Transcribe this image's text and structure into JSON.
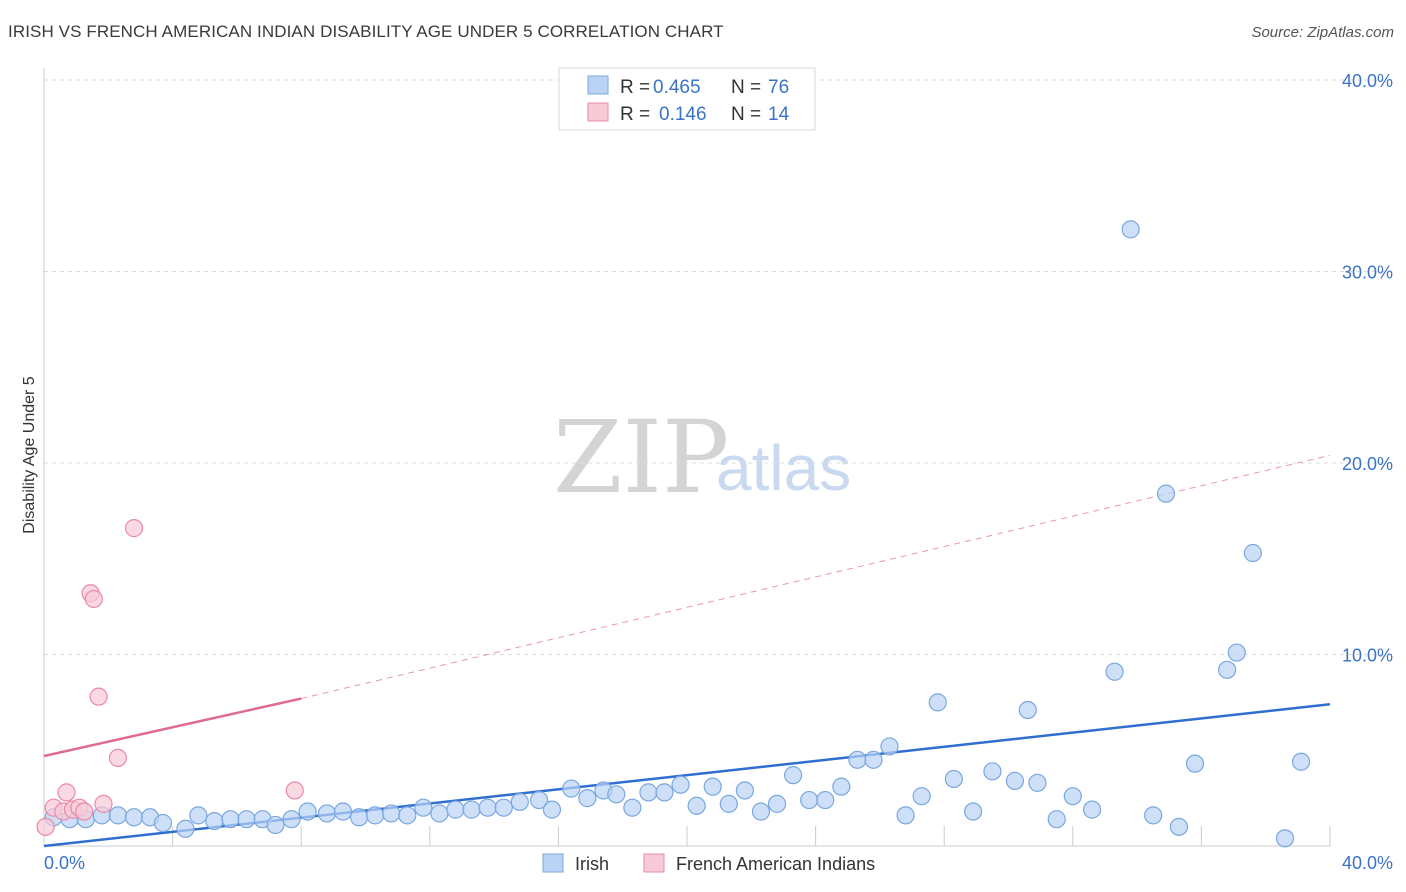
{
  "title": "IRISH VS FRENCH AMERICAN INDIAN DISABILITY AGE UNDER 5 CORRELATION CHART",
  "source": "Source: ZipAtlas.com",
  "watermark": {
    "zip": "ZIP",
    "atlas": "atlas"
  },
  "colors": {
    "irish_fill": "#b9d3f5",
    "irish_stroke": "#7aa7e0",
    "irish_line": "#2f6fd0",
    "french_fill": "#f8c9d7",
    "french_stroke": "#e98aa7",
    "french_line": "#e06b92",
    "axis_text": "#3b73c7",
    "grid": "#dddddd"
  },
  "legend": {
    "rows": [
      {
        "r_label": "R = ",
        "r_value": "0.465",
        "n_label": "N = ",
        "n_value": "76"
      },
      {
        "r_label": "R = ",
        "r_value": "0.146",
        "n_label": "N = ",
        "n_value": "14"
      }
    ]
  },
  "chart_data": {
    "type": "scatter",
    "title": "IRISH VS FRENCH AMERICAN INDIAN DISABILITY AGE UNDER 5 CORRELATION CHART",
    "xlabel": "",
    "ylabel": "Disability Age Under 5",
    "xlim": [
      0,
      40
    ],
    "ylim": [
      0,
      40
    ],
    "x_tick_labels": {
      "min": "0.0%",
      "max": "40.0%"
    },
    "y_ticks": [
      {
        "value": 10,
        "label": "10.0%"
      },
      {
        "value": 20,
        "label": "20.0%"
      },
      {
        "value": 30,
        "label": "30.0%"
      },
      {
        "value": 40,
        "label": "40.0%"
      }
    ],
    "grid": true,
    "legend_position": "top-center",
    "series": [
      {
        "name": "Irish",
        "R": 0.465,
        "N": 76,
        "trend": {
          "x0": 0,
          "y0": 0.0,
          "x1": 40,
          "y1": 7.4,
          "dashed_extension": false
        },
        "points": [
          [
            0.3,
            1.5
          ],
          [
            0.8,
            1.4
          ],
          [
            1.3,
            1.4
          ],
          [
            1.8,
            1.6
          ],
          [
            2.3,
            1.6
          ],
          [
            2.8,
            1.5
          ],
          [
            3.3,
            1.5
          ],
          [
            3.7,
            1.2
          ],
          [
            4.4,
            0.9
          ],
          [
            4.8,
            1.6
          ],
          [
            5.3,
            1.3
          ],
          [
            5.8,
            1.4
          ],
          [
            6.3,
            1.4
          ],
          [
            6.8,
            1.4
          ],
          [
            7.2,
            1.1
          ],
          [
            7.7,
            1.4
          ],
          [
            8.2,
            1.8
          ],
          [
            8.8,
            1.7
          ],
          [
            9.3,
            1.8
          ],
          [
            9.8,
            1.5
          ],
          [
            10.3,
            1.6
          ],
          [
            10.8,
            1.7
          ],
          [
            11.3,
            1.6
          ],
          [
            11.8,
            2.0
          ],
          [
            12.3,
            1.7
          ],
          [
            12.8,
            1.9
          ],
          [
            13.3,
            1.9
          ],
          [
            13.8,
            2.0
          ],
          [
            14.3,
            2.0
          ],
          [
            14.8,
            2.3
          ],
          [
            15.4,
            2.4
          ],
          [
            15.8,
            1.9
          ],
          [
            16.4,
            3.0
          ],
          [
            16.9,
            2.5
          ],
          [
            17.4,
            2.9
          ],
          [
            17.8,
            2.7
          ],
          [
            18.3,
            2.0
          ],
          [
            18.8,
            2.8
          ],
          [
            19.3,
            2.8
          ],
          [
            19.8,
            3.2
          ],
          [
            20.3,
            2.1
          ],
          [
            20.8,
            3.1
          ],
          [
            21.3,
            2.2
          ],
          [
            21.8,
            2.9
          ],
          [
            22.3,
            1.8
          ],
          [
            22.8,
            2.2
          ],
          [
            23.3,
            3.7
          ],
          [
            23.8,
            2.4
          ],
          [
            24.3,
            2.4
          ],
          [
            24.8,
            3.1
          ],
          [
            25.3,
            4.5
          ],
          [
            25.8,
            4.5
          ],
          [
            26.3,
            5.2
          ],
          [
            26.8,
            1.6
          ],
          [
            27.3,
            2.6
          ],
          [
            27.8,
            7.5
          ],
          [
            28.3,
            3.5
          ],
          [
            28.9,
            1.8
          ],
          [
            29.5,
            3.9
          ],
          [
            30.2,
            3.4
          ],
          [
            30.6,
            7.1
          ],
          [
            30.9,
            3.3
          ],
          [
            31.5,
            1.4
          ],
          [
            32.0,
            2.6
          ],
          [
            32.6,
            1.9
          ],
          [
            33.3,
            9.1
          ],
          [
            33.8,
            32.2
          ],
          [
            34.5,
            1.6
          ],
          [
            34.9,
            18.4
          ],
          [
            35.3,
            1.0
          ],
          [
            35.8,
            4.3
          ],
          [
            36.8,
            9.2
          ],
          [
            37.1,
            10.1
          ],
          [
            37.6,
            15.3
          ],
          [
            38.6,
            0.4
          ],
          [
            39.1,
            4.4
          ]
        ]
      },
      {
        "name": "French American Indians",
        "R": 0.146,
        "N": 14,
        "trend": {
          "x0": 0,
          "y0": 4.7,
          "x1": 8.0,
          "y1": 7.7,
          "dashed_extension": true,
          "dash_x1": 40,
          "dash_y1": 20.4
        },
        "points": [
          [
            0.05,
            1.0
          ],
          [
            0.3,
            2.0
          ],
          [
            0.6,
            1.8
          ],
          [
            0.7,
            2.8
          ],
          [
            0.9,
            1.9
          ],
          [
            1.1,
            2.0
          ],
          [
            1.25,
            1.8
          ],
          [
            1.45,
            13.2
          ],
          [
            1.55,
            12.9
          ],
          [
            1.7,
            7.8
          ],
          [
            1.85,
            2.2
          ],
          [
            2.3,
            4.6
          ],
          [
            2.8,
            16.6
          ],
          [
            7.8,
            2.9
          ]
        ]
      }
    ]
  },
  "bottom_legend": [
    {
      "label": "Irish"
    },
    {
      "label": "French American Indians"
    }
  ]
}
